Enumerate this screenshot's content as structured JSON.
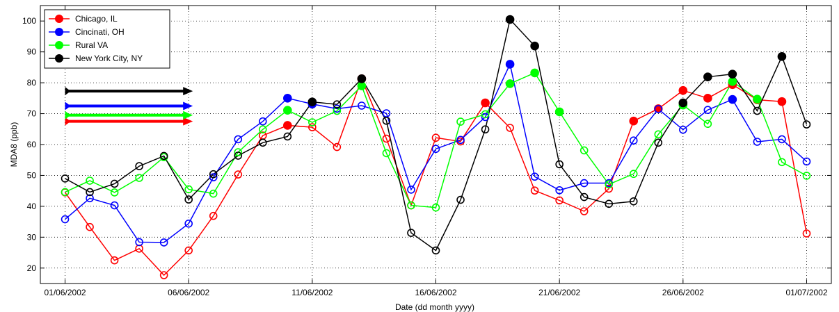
{
  "chart_data": {
    "type": "line",
    "xlabel": "Date (dd month yyyy)",
    "ylabel": "MDA8 (ppb)",
    "xlim": [
      "2002-05-31",
      "2002-07-02"
    ],
    "ylim": [
      15,
      105
    ],
    "x_ticks": [
      "2002-06-01",
      "2002-06-06",
      "2002-06-11",
      "2002-06-16",
      "2002-06-21",
      "2002-06-26",
      "2002-07-01"
    ],
    "x_tick_labels": [
      "01/06/2002",
      "06/06/2002",
      "11/06/2002",
      "16/06/2002",
      "21/06/2002",
      "26/06/2002",
      "01/07/2002"
    ],
    "y_ticks": [
      20,
      30,
      40,
      50,
      60,
      70,
      80,
      90,
      100
    ],
    "y_tick_labels": [
      "20",
      "30",
      "40",
      "50",
      "60",
      "70",
      "80",
      "90",
      "100"
    ],
    "grid": true,
    "legend_position": "top-left",
    "dates": [
      "2002-06-01",
      "2002-06-02",
      "2002-06-03",
      "2002-06-04",
      "2002-06-05",
      "2002-06-06",
      "2002-06-07",
      "2002-06-08",
      "2002-06-09",
      "2002-06-10",
      "2002-06-11",
      "2002-06-12",
      "2002-06-13",
      "2002-06-14",
      "2002-06-15",
      "2002-06-16",
      "2002-06-17",
      "2002-06-18",
      "2002-06-19",
      "2002-06-20",
      "2002-06-21",
      "2002-06-22",
      "2002-06-23",
      "2002-06-24",
      "2002-06-25",
      "2002-06-26",
      "2002-06-27",
      "2002-06-28",
      "2002-06-29",
      "2002-06-30",
      "2002-07-01"
    ],
    "series": [
      {
        "name": "Chicago, IL",
        "color": "#ff0000",
        "values": [
          44.5,
          33.3,
          22.5,
          26.3,
          17.7,
          25.7,
          36.9,
          50.3,
          62.9,
          66.2,
          65.6,
          59.2,
          81.3,
          61.9,
          40.3,
          62.2,
          61.0,
          73.5,
          65.4,
          45.1,
          41.9,
          38.4,
          45.7,
          67.6,
          71.6,
          77.5,
          75.0,
          79.4,
          74.5,
          73.9,
          31.2
        ],
        "filled": [
          false,
          false,
          false,
          false,
          false,
          false,
          false,
          false,
          false,
          true,
          false,
          false,
          true,
          false,
          false,
          false,
          false,
          true,
          false,
          false,
          false,
          false,
          false,
          true,
          true,
          true,
          true,
          true,
          true,
          true,
          false
        ],
        "threshold": 67.5
      },
      {
        "name": "Cincinati, OH",
        "color": "#0000ff",
        "values": [
          35.8,
          42.6,
          40.3,
          28.4,
          28.3,
          34.4,
          49.4,
          61.7,
          67.5,
          75.0,
          73.1,
          71.6,
          72.6,
          70.1,
          45.4,
          58.6,
          61.5,
          68.9,
          86.0,
          49.6,
          45.2,
          47.5,
          47.5,
          61.3,
          71.5,
          64.8,
          71.2,
          74.6,
          60.9,
          61.7,
          54.5
        ],
        "filled": [
          false,
          false,
          false,
          false,
          false,
          false,
          false,
          false,
          false,
          true,
          true,
          false,
          false,
          false,
          false,
          false,
          false,
          false,
          true,
          false,
          false,
          false,
          false,
          false,
          false,
          false,
          false,
          true,
          false,
          false,
          false
        ],
        "threshold": 72.5
      },
      {
        "name": "Rural VA",
        "color": "#00ff00",
        "values": [
          44.6,
          48.3,
          44.5,
          49.2,
          55.9,
          45.5,
          44.1,
          57.5,
          64.9,
          71.1,
          67.2,
          70.9,
          79.0,
          57.2,
          40.3,
          39.6,
          67.4,
          69.8,
          79.7,
          83.2,
          70.6,
          58.1,
          47.1,
          50.5,
          63.3,
          72.8,
          66.7,
          80.4,
          74.7,
          54.3,
          49.9
        ],
        "filled": [
          false,
          false,
          false,
          false,
          false,
          false,
          false,
          false,
          false,
          true,
          false,
          false,
          true,
          false,
          false,
          false,
          false,
          false,
          true,
          true,
          true,
          false,
          false,
          false,
          false,
          true,
          false,
          true,
          true,
          false,
          false
        ],
        "threshold": 69.5
      },
      {
        "name": "New York City, NY",
        "color": "#000000",
        "values": [
          49.0,
          44.6,
          47.3,
          53.0,
          56.3,
          42.2,
          50.4,
          56.4,
          60.6,
          62.6,
          73.8,
          73.0,
          81.3,
          67.7,
          31.4,
          25.7,
          42.1,
          64.9,
          100.5,
          91.9,
          53.6,
          43.0,
          40.8,
          41.6,
          60.6,
          73.5,
          81.9,
          82.8,
          70.9,
          88.5,
          66.5
        ],
        "filled": [
          false,
          false,
          false,
          false,
          false,
          false,
          false,
          false,
          false,
          false,
          true,
          false,
          true,
          false,
          false,
          false,
          false,
          false,
          true,
          true,
          false,
          false,
          false,
          false,
          false,
          true,
          true,
          true,
          false,
          true,
          false
        ],
        "threshold": 77.3
      }
    ]
  }
}
